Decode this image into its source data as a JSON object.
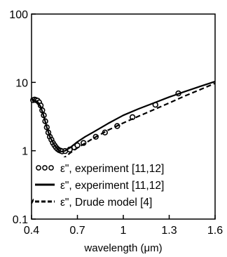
{
  "chart_data": {
    "type": "line",
    "title": "",
    "xlabel": "wavelength (μm)",
    "ylabel": "",
    "xlim": [
      0.4,
      1.6
    ],
    "ylim": [
      0.1,
      100
    ],
    "yscale": "log",
    "grid": false,
    "legend_position": "bottom-left",
    "x_ticks": [
      {
        "value": 0.4,
        "label": "0.4"
      },
      {
        "value": 0.7,
        "label": "0.7"
      },
      {
        "value": 1.0,
        "label": "1"
      },
      {
        "value": 1.3,
        "label": "1.3"
      },
      {
        "value": 1.6,
        "label": "1.6"
      }
    ],
    "y_ticks": [
      {
        "value": 0.1,
        "label": "0.1"
      },
      {
        "value": 1,
        "label": "1"
      },
      {
        "value": 10,
        "label": "10"
      },
      {
        "value": 100,
        "label": "100"
      }
    ],
    "series": [
      {
        "name": "ε\", experiment [11,12]",
        "style": "circles",
        "color": "#000000",
        "x": [
          0.41,
          0.42,
          0.43,
          0.44,
          0.45,
          0.46,
          0.47,
          0.48,
          0.49,
          0.5,
          0.51,
          0.52,
          0.53,
          0.54,
          0.55,
          0.56,
          0.57,
          0.58,
          0.59,
          0.6,
          0.62,
          0.65,
          0.68,
          0.7,
          0.74,
          0.82,
          0.88,
          0.96,
          1.06,
          1.21,
          1.36
        ],
        "y": [
          5.5,
          5.6,
          5.5,
          5.4,
          5.1,
          4.6,
          3.9,
          3.3,
          2.7,
          2.2,
          1.85,
          1.6,
          1.45,
          1.3,
          1.2,
          1.12,
          1.06,
          1.02,
          1.0,
          0.98,
          0.99,
          1.04,
          1.12,
          1.2,
          1.3,
          1.6,
          1.85,
          2.3,
          3.1,
          4.7,
          6.9
        ]
      },
      {
        "name": "ε\", experiment [11,12]",
        "style": "solid",
        "color": "#000000",
        "x": [
          0.4,
          0.42,
          0.44,
          0.46,
          0.48,
          0.5,
          0.52,
          0.55,
          0.58,
          0.6,
          0.62,
          0.65,
          0.7,
          0.75,
          0.8,
          0.9,
          1.0,
          1.1,
          1.2,
          1.3,
          1.4,
          1.5,
          1.6
        ],
        "y": [
          5.6,
          5.5,
          5.2,
          4.4,
          3.2,
          2.2,
          1.6,
          1.2,
          1.0,
          0.97,
          1.0,
          1.1,
          1.35,
          1.6,
          1.85,
          2.5,
          3.3,
          4.1,
          5.0,
          6.1,
          7.3,
          8.7,
          10.3
        ]
      },
      {
        "name": "ε\", Drude model [4]",
        "style": "dashed",
        "color": "#000000",
        "x": [
          0.4,
          0.45,
          0.5,
          0.55,
          0.6,
          0.65,
          0.7,
          0.8,
          0.9,
          1.0,
          1.1,
          1.2,
          1.3,
          1.4,
          1.5,
          1.6
        ],
        "y": [
          0.17,
          0.28,
          0.42,
          0.58,
          0.75,
          0.92,
          1.1,
          1.5,
          2.0,
          2.55,
          3.2,
          4.0,
          5.0,
          6.3,
          7.8,
          9.7
        ]
      }
    ]
  }
}
